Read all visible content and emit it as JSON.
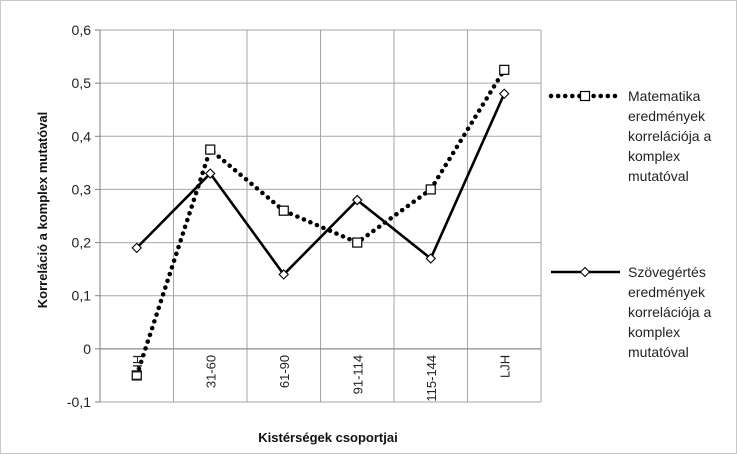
{
  "chart_data": {
    "type": "line",
    "title": "",
    "xlabel": "Kistérségek csoportjai",
    "ylabel": "Korreláció a komplex mutatóval",
    "categories": [
      "LHH",
      "31-60",
      "61-90",
      "91-114",
      "115-144",
      "LJH"
    ],
    "ylim": [
      -0.1,
      0.6
    ],
    "yticks": [
      "-0,1",
      "0",
      "0,1",
      "0,2",
      "0,3",
      "0,4",
      "0,5",
      "0,6"
    ],
    "grid": true,
    "legend_position": "right",
    "series": [
      {
        "name": "Matematika eredmények korrelációja a komplex mutatóval",
        "legend_lines": [
          "Matematika",
          "eredmények",
          "korrelációja a",
          "komplex",
          "mutatóval"
        ],
        "values": [
          -0.05,
          0.375,
          0.26,
          0.2,
          0.3,
          0.525
        ],
        "style": "dotted",
        "marker": "square",
        "color": "#000000"
      },
      {
        "name": "Szövegértés eredmények korrelációja a komplex mutatóval",
        "legend_lines": [
          "Szövegértés",
          "eredmények",
          "korrelációja a",
          "komplex",
          "mutatóval"
        ],
        "values": [
          0.19,
          0.33,
          0.14,
          0.28,
          0.17,
          0.48
        ],
        "style": "solid",
        "marker": "diamond",
        "color": "#000000"
      }
    ]
  }
}
